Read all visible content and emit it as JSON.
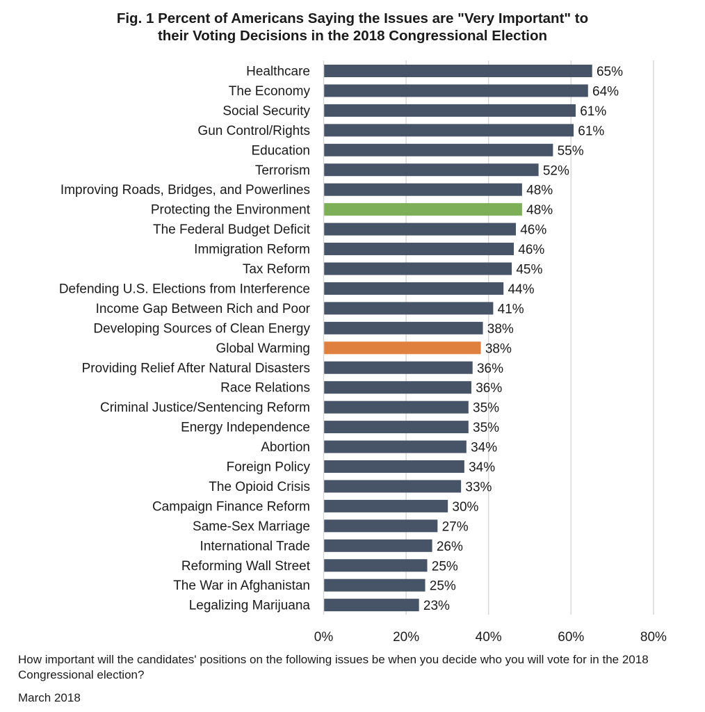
{
  "chart_data": {
    "type": "bar",
    "orientation": "horizontal",
    "title_lines": [
      "Fig. 1 Percent of Americans Saying the Issues are \"Very Important\" to",
      "their Voting Decisions in the 2018 Congressional Election"
    ],
    "xlabel": "",
    "ylabel": "",
    "xlim": [
      0,
      80
    ],
    "x_ticks": [
      0,
      20,
      40,
      60,
      80
    ],
    "x_tick_labels": [
      "0%",
      "20%",
      "40%",
      "60%",
      "80%"
    ],
    "grid": true,
    "value_suffix": "%",
    "categories": [
      "Healthcare",
      "The Economy",
      "Social Security",
      "Gun Control/Rights",
      "Education",
      "Terrorism",
      "Improving Roads, Bridges, and Powerlines",
      "Protecting the Environment",
      "The Federal Budget Deficit",
      "Immigration Reform",
      "Tax Reform",
      "Defending U.S. Elections from Interference",
      "Income Gap Between Rich and Poor",
      "Developing Sources of Clean Energy",
      "Global Warming",
      "Providing Relief After Natural Disasters",
      "Race Relations",
      "Criminal Justice/Sentencing Reform",
      "Energy Independence",
      "Abortion",
      "Foreign Policy",
      "The Opioid Crisis",
      "Campaign Finance Reform",
      "Same-Sex Marriage",
      "International Trade",
      "Reforming Wall Street",
      "The War in Afghanistan",
      "Legalizing Marijuana"
    ],
    "values": [
      65,
      64,
      61,
      61,
      55,
      52,
      48,
      48,
      46,
      46,
      45,
      44,
      41,
      38,
      38,
      36,
      36,
      35,
      35,
      34,
      34,
      33,
      30,
      27,
      26,
      25,
      25,
      23
    ],
    "bar_lengths": [
      65,
      64,
      61,
      60.5,
      55.5,
      52,
      48,
      48,
      46.5,
      46,
      45.5,
      43.5,
      41,
      38.5,
      38,
      36,
      35.7,
      35,
      35,
      34.5,
      34,
      33.2,
      30,
      27.5,
      26.2,
      25,
      24.5,
      23
    ],
    "colors": {
      "default": "#475366",
      "highlight_green": "#7caf57",
      "highlight_orange": "#e0803f",
      "grid": "#d9d9d9"
    },
    "highlights": {
      "Protecting the Environment": "highlight_green",
      "Global Warming": "highlight_orange"
    }
  },
  "footer": {
    "question": "How important will the candidates' positions on the following issues be when you decide who you will vote for in the 2018 Congressional election?",
    "date": "March 2018"
  }
}
